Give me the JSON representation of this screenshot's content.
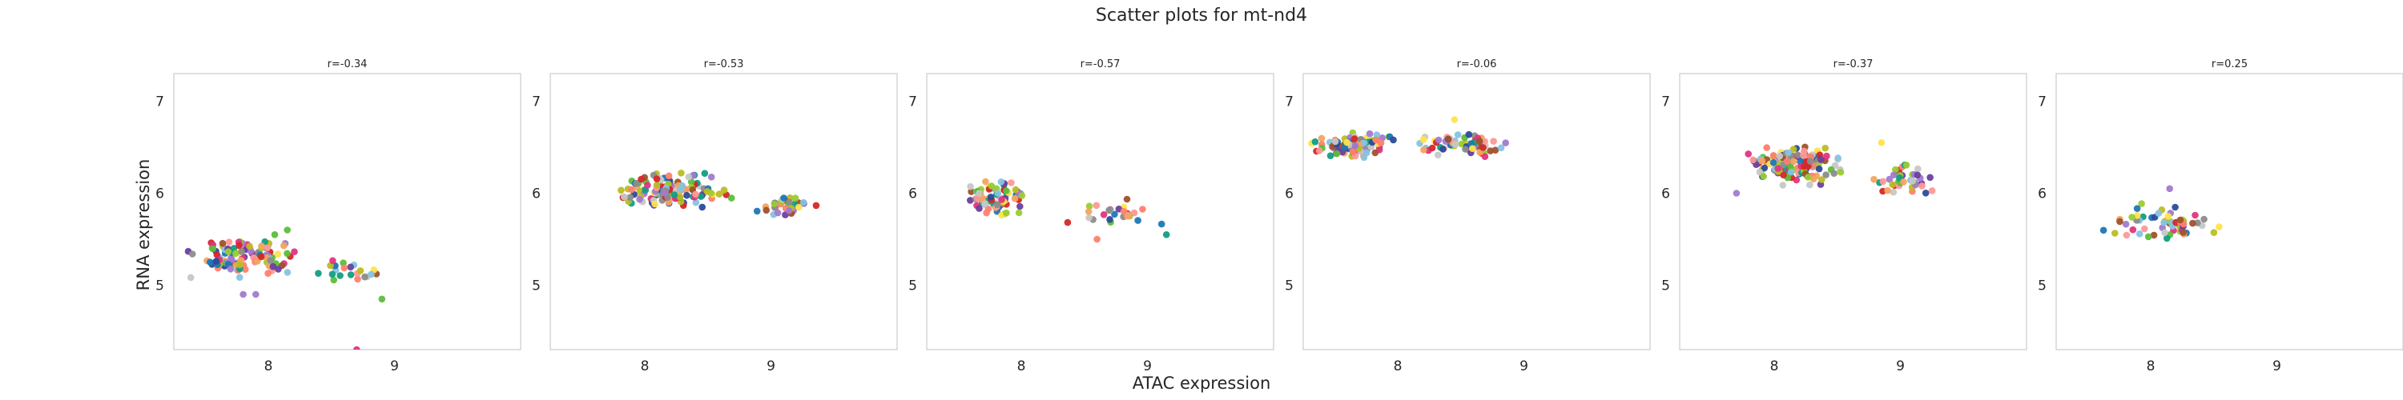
{
  "figure": {
    "title": "Scatter plots for mt-nd4",
    "xlabel": "ATAC expression",
    "ylabel": "RNA expression"
  },
  "chart_data": [
    {
      "type": "scatter",
      "title": "r=-0.34",
      "xlim": [
        7.25,
        10.0
      ],
      "ylim": [
        4.3,
        7.3
      ],
      "xticks": [
        8,
        9
      ],
      "yticks": [
        5,
        6,
        7
      ],
      "grid": false,
      "cloud": [
        {
          "x": [
            7.3,
            8.3
          ],
          "y": [
            5.05,
            5.55
          ],
          "n": 110
        },
        {
          "x": [
            8.35,
            9.0
          ],
          "y": [
            5.0,
            5.3
          ],
          "n": 22
        }
      ],
      "points": [
        {
          "x": 7.8,
          "y": 4.9,
          "color": "#a27ad0"
        },
        {
          "x": 7.9,
          "y": 4.9,
          "color": "#a27ad0"
        },
        {
          "x": 8.15,
          "y": 5.6,
          "color": "#5dbe3a"
        },
        {
          "x": 8.05,
          "y": 5.55,
          "color": "#5dbe3a"
        },
        {
          "x": 8.7,
          "y": 4.3,
          "color": "#e0357f"
        },
        {
          "x": 8.9,
          "y": 4.85,
          "color": "#5dbe3a"
        }
      ]
    },
    {
      "type": "scatter",
      "title": "r=-0.53",
      "xlim": [
        7.25,
        10.0
      ],
      "ylim": [
        4.3,
        7.3
      ],
      "xticks": [
        8,
        9
      ],
      "yticks": [
        5,
        6,
        7
      ],
      "grid": false,
      "cloud": [
        {
          "x": [
            7.6,
            8.75
          ],
          "y": [
            5.8,
            6.25
          ],
          "n": 130
        },
        {
          "x": [
            8.8,
            9.45
          ],
          "y": [
            5.72,
            6.0
          ],
          "n": 32
        }
      ],
      "points": []
    },
    {
      "type": "scatter",
      "title": "r=-0.57",
      "xlim": [
        7.25,
        10.0
      ],
      "ylim": [
        4.3,
        7.3
      ],
      "xticks": [
        8,
        9
      ],
      "yticks": [
        5,
        6,
        7
      ],
      "grid": false,
      "cloud": [
        {
          "x": [
            7.5,
            8.1
          ],
          "y": [
            5.7,
            6.2
          ],
          "n": 75
        },
        {
          "x": [
            8.3,
            9.2
          ],
          "y": [
            5.6,
            5.95
          ],
          "n": 26
        }
      ],
      "points": [
        {
          "x": 8.6,
          "y": 5.5,
          "color": "#ff7f6e"
        },
        {
          "x": 9.15,
          "y": 5.55,
          "color": "#129e84"
        }
      ]
    },
    {
      "type": "scatter",
      "title": "r=-0.06",
      "xlim": [
        7.25,
        10.0
      ],
      "ylim": [
        4.3,
        7.3
      ],
      "xticks": [
        8,
        9
      ],
      "yticks": [
        5,
        6,
        7
      ],
      "grid": false,
      "cloud": [
        {
          "x": [
            7.25,
            8.05
          ],
          "y": [
            6.35,
            6.7
          ],
          "n": 95
        },
        {
          "x": [
            8.05,
            9.0
          ],
          "y": [
            6.35,
            6.7
          ],
          "n": 70
        }
      ],
      "points": [
        {
          "x": 8.45,
          "y": 6.8,
          "color": "#ffe34d"
        }
      ]
    },
    {
      "type": "scatter",
      "title": "r=-0.37",
      "xlim": [
        7.25,
        10.0
      ],
      "ylim": [
        4.3,
        7.3
      ],
      "xticks": [
        8,
        9
      ],
      "yticks": [
        5,
        6,
        7
      ],
      "grid": false,
      "cloud": [
        {
          "x": [
            7.7,
            8.6
          ],
          "y": [
            6.05,
            6.6
          ],
          "n": 150
        },
        {
          "x": [
            8.6,
            9.4
          ],
          "y": [
            5.95,
            6.35
          ],
          "n": 40
        }
      ],
      "points": [
        {
          "x": 7.7,
          "y": 6.0,
          "color": "#a27ad0"
        },
        {
          "x": 8.85,
          "y": 6.55,
          "color": "#ffe34d"
        }
      ]
    },
    {
      "type": "scatter",
      "title": "r=0.25",
      "xlim": [
        7.25,
        10.0
      ],
      "ylim": [
        4.3,
        7.3
      ],
      "xticks": [
        8,
        9
      ],
      "yticks": [
        5,
        6,
        7
      ],
      "grid": false,
      "cloud": [
        {
          "x": [
            7.55,
            8.65
          ],
          "y": [
            5.4,
            5.95
          ],
          "n": 60
        }
      ],
      "points": [
        {
          "x": 8.15,
          "y": 6.05,
          "color": "#a27ad0"
        }
      ]
    }
  ]
}
